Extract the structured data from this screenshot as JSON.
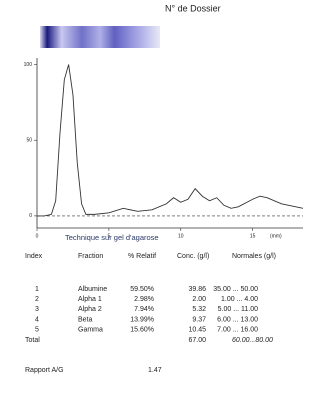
{
  "header": {
    "title": "N° de Dossier"
  },
  "chart_data": {
    "type": "line",
    "x": [
      0,
      0.5,
      1,
      1.3,
      1.6,
      1.9,
      2.2,
      2.5,
      2.8,
      3.1,
      3.4,
      4,
      5,
      6,
      7,
      8,
      9,
      9.5,
      10,
      10.5,
      11,
      11.5,
      12,
      12.5,
      13,
      13.5,
      14,
      15,
      15.5,
      16,
      17,
      18,
      18.5
    ],
    "series": [
      {
        "color": "#333333",
        "values": [
          0,
          0,
          1,
          10,
          55,
          90,
          100,
          80,
          35,
          8,
          1,
          1,
          2,
          5,
          3,
          4,
          8,
          12,
          9,
          11,
          18,
          13,
          10,
          12,
          7,
          5,
          6,
          11,
          13,
          12,
          8,
          6,
          5
        ]
      }
    ],
    "xlim": [
      0,
      18.5
    ],
    "ylim": [
      -8,
      103
    ],
    "xticks": [
      0,
      5,
      10,
      15
    ],
    "yticks": [
      0,
      50,
      100
    ],
    "xlabel": "(mm)"
  },
  "method": "Technique sur gel d'agarose",
  "table": {
    "columns": [
      "Index",
      "Fraction",
      "% Relatif",
      "Conc. (g/l)",
      "Normales (g/l)"
    ],
    "rows": [
      [
        "1",
        "Albumine",
        "59.50%",
        "39.86",
        "35.00 ... 50.00"
      ],
      [
        "2",
        "Alpha 1",
        "2.98%",
        "2.00",
        "1.00 ... 4.00"
      ],
      [
        "3",
        "Alpha 2",
        "7.94%",
        "5.32",
        "5.00 ... 11.00"
      ],
      [
        "4",
        "Beta",
        "13.99%",
        "9.37",
        "6.00 ... 13.00"
      ],
      [
        "5",
        "Gamma",
        "15.60%",
        "10.45",
        "7.00 ... 16.00"
      ]
    ],
    "total": [
      "Total",
      "67.00",
      "60.00...80.00"
    ]
  },
  "ratio": {
    "label": "Rapport A/G",
    "value": "1.47"
  }
}
